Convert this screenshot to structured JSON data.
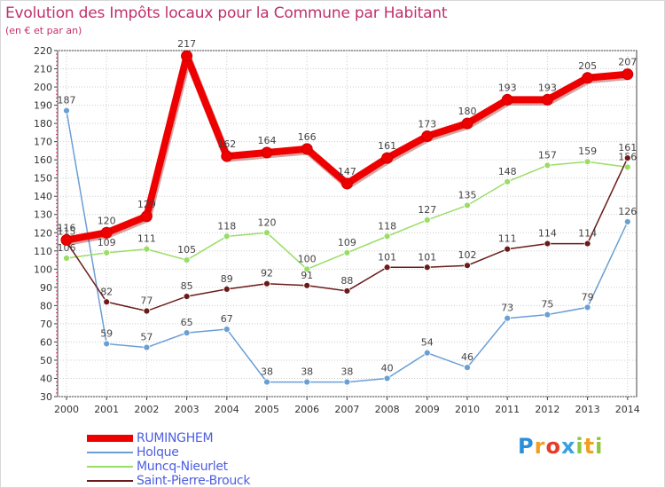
{
  "chart_data": {
    "type": "line",
    "title": "Evolution des Impôts locaux pour la Commune par Habitant",
    "subtitle": "(en € et par an)",
    "xlabel": "",
    "ylabel": "",
    "ylim": [
      30,
      220
    ],
    "yticks": [
      30,
      40,
      50,
      60,
      70,
      80,
      90,
      100,
      110,
      120,
      130,
      140,
      150,
      160,
      170,
      180,
      190,
      200,
      210,
      220
    ],
    "categories": [
      "2000",
      "2001",
      "2002",
      "2003",
      "2004",
      "2005",
      "2006",
      "2007",
      "2008",
      "2009",
      "2010",
      "2011",
      "2012",
      "2013",
      "2014"
    ],
    "grid": true,
    "series": [
      {
        "name": "RUMINGHEM",
        "color": "#ee0000",
        "thick": true,
        "values": [
          116,
          120,
          129,
          217,
          162,
          164,
          166,
          147,
          161,
          173,
          180,
          193,
          193,
          205,
          207
        ]
      },
      {
        "name": "Holque",
        "color": "#6a9fd4",
        "thick": false,
        "values": [
          187,
          59,
          57,
          65,
          67,
          38,
          38,
          38,
          40,
          54,
          46,
          73,
          75,
          79,
          126
        ]
      },
      {
        "name": "Muncq-Nieurlet",
        "color": "#99dd66",
        "thick": false,
        "values": [
          106,
          109,
          111,
          105,
          118,
          120,
          100,
          109,
          118,
          127,
          135,
          148,
          157,
          159,
          156
        ]
      },
      {
        "name": "Saint-Pierre-Brouck",
        "color": "#6b1a1a",
        "thick": false,
        "values": [
          115,
          82,
          77,
          85,
          89,
          92,
          91,
          88,
          101,
          101,
          102,
          111,
          114,
          114,
          161
        ]
      }
    ]
  },
  "logo": {
    "text": "Proxiti",
    "letters": [
      "P",
      "r",
      "o",
      "x",
      "i",
      "t",
      "i"
    ]
  }
}
